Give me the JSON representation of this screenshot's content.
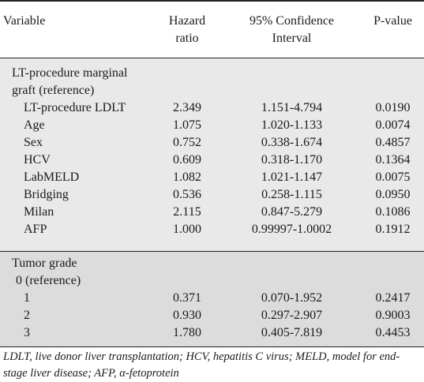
{
  "header": {
    "variable": "Variable",
    "hr_line1": "Hazard",
    "hr_line2": "ratio",
    "ci_line1": "95% Confidence",
    "ci_line2": "Interval",
    "pvalue": "P-value"
  },
  "section1": {
    "title_line1": "LT-procedure marginal",
    "title_line2": "graft (reference)",
    "rows": [
      {
        "variable": "LT-procedure LDLT",
        "hr": "2.349",
        "ci": "1.151-4.794",
        "p": "0.0190"
      },
      {
        "variable": "Age",
        "hr": "1.075",
        "ci": "1.020-1.133",
        "p": "0.0074"
      },
      {
        "variable": "Sex",
        "hr": "0.752",
        "ci": "0.338-1.674",
        "p": "0.4857"
      },
      {
        "variable": "HCV",
        "hr": "0.609",
        "ci": "0.318-1.170",
        "p": "0.1364"
      },
      {
        "variable": "LabMELD",
        "hr": "1.082",
        "ci": "1.021-1.147",
        "p": "0.0075"
      },
      {
        "variable": "Bridging",
        "hr": "0.536",
        "ci": "0.258-1.115",
        "p": "0.0950"
      },
      {
        "variable": "Milan",
        "hr": "2.115",
        "ci": "0.847-5.279",
        "p": "0.1086"
      },
      {
        "variable": "AFP",
        "hr": "1.000",
        "ci": "0.99997-1.0002",
        "p": "0.1912"
      }
    ]
  },
  "section2": {
    "title": "Tumor grade",
    "rows": [
      {
        "variable": "0 (reference)",
        "hr": "",
        "ci": "",
        "p": ""
      },
      {
        "variable": "1",
        "hr": "0.371",
        "ci": "0.070-1.952",
        "p": "0.2417"
      },
      {
        "variable": "2",
        "hr": "0.930",
        "ci": "0.297-2.907",
        "p": "0.9003"
      },
      {
        "variable": "3",
        "hr": "1.780",
        "ci": "0.405-7.819",
        "p": "0.4453"
      }
    ]
  },
  "footnote": "LDLT, live donor liver transplantation; HCV, hepatitis C virus; MELD, model for end-stage liver disease; AFP, α-fetoprotein"
}
